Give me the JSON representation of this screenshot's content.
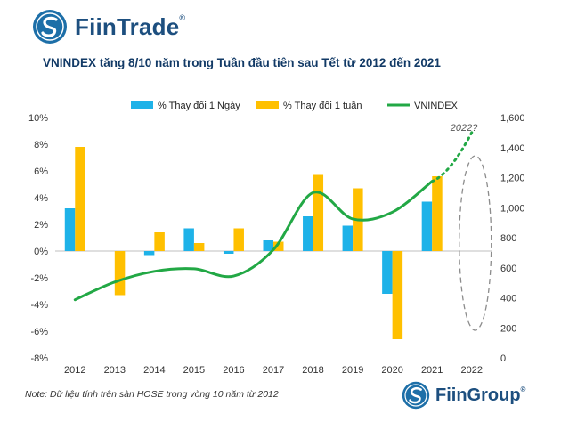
{
  "brand": {
    "name": "FiinTrade",
    "reg": "®",
    "icon": "fiin-logo-icon"
  },
  "footer_brand": {
    "name": "FiinGroup",
    "reg": "®",
    "icon": "fiin-logo-icon"
  },
  "note": "Note: Dữ liệu tính trên sàn HOSE trong vòng 10 năm từ 2012",
  "colors": {
    "day_bar": "#1eb2e8",
    "week_bar": "#ffc000",
    "vnindex_line": "#22a845",
    "brand": "#1d4f7f"
  },
  "chart_data": {
    "type": "bar",
    "title": "VNINDEX tăng 8/10 năm trong Tuần đầu tiên sau Tết từ 2012 đến 2021",
    "categories": [
      "2012",
      "2013",
      "2014",
      "2015",
      "2016",
      "2017",
      "2018",
      "2019",
      "2020",
      "2021",
      "2022"
    ],
    "series": [
      {
        "name": "% Thay đổi 1 Ngày",
        "type": "bar",
        "axis": "left",
        "values": [
          3.2,
          0,
          -0.3,
          1.7,
          -0.2,
          0.8,
          2.6,
          1.9,
          -3.2,
          3.7,
          null
        ]
      },
      {
        "name": "% Thay đổi 1 tuần",
        "type": "bar",
        "axis": "left",
        "values": [
          7.8,
          -3.3,
          1.4,
          0.6,
          1.7,
          0.7,
          5.7,
          4.7,
          -6.6,
          5.6,
          null
        ]
      },
      {
        "name": "VNINDEX",
        "type": "line",
        "axis": "right",
        "values": [
          387,
          505,
          576,
          593,
          545,
          720,
          1100,
          925,
          970,
          1175,
          1500
        ]
      }
    ],
    "left_axis": {
      "min": -8,
      "max": 10,
      "step": 2,
      "ticks": [
        "-8%",
        "-6%",
        "-4%",
        "-2%",
        "0%",
        "2%",
        "4%",
        "6%",
        "8%",
        "10%"
      ]
    },
    "right_axis": {
      "min": 0,
      "max": 1600,
      "step": 200,
      "ticks": [
        "0",
        "200",
        "400",
        "600",
        "800",
        "1,000",
        "1,200",
        "1,400",
        "1,600"
      ]
    },
    "projection": {
      "label": "2022?",
      "from_category": "2021",
      "to_category": "2022"
    },
    "legend": {
      "position": "top"
    },
    "grid": false
  }
}
